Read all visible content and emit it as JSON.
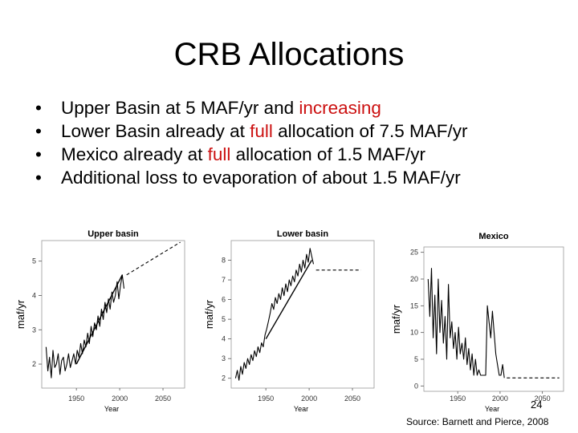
{
  "slide": {
    "title": "CRB Allocations",
    "bullets": [
      {
        "bullet": "•",
        "parts": [
          "Upper Basin at 5 MAF/yr and ",
          "increasing",
          ""
        ]
      },
      {
        "bullet": "•",
        "parts": [
          "Lower Basin already at ",
          "full",
          " allocation of 7.5 MAF/yr"
        ]
      },
      {
        "bullet": "•",
        "parts": [
          "Mexico already at ",
          "full",
          " allocation of 1.5 MAF/yr"
        ]
      },
      {
        "bullet": "•",
        "parts": [
          "Additional loss to evaporation of about 1.5 MAF/yr",
          "",
          ""
        ]
      }
    ],
    "page_number": "24",
    "source": "Source: Barnett and Pierce, 2008"
  },
  "colors": {
    "highlight": "#cc1111",
    "text": "#000000",
    "plot_line": "#000000"
  },
  "chart_data": [
    {
      "type": "line",
      "title": "Upper basin",
      "xlabel": "Year",
      "ylabel": "maf/yr",
      "xlim": [
        1910,
        2075
      ],
      "ylim": [
        1.3,
        5.6
      ],
      "xticks": [
        1950,
        2000,
        2050
      ],
      "yticks": [
        2,
        3,
        4,
        5
      ],
      "grid": false,
      "series": [
        {
          "style": "solid",
          "x": [
            1915,
            1917,
            1919,
            1921,
            1923,
            1925,
            1927,
            1929,
            1931,
            1933,
            1935,
            1937,
            1939,
            1941,
            1943,
            1945,
            1947,
            1949,
            1951,
            1953,
            1955,
            1957,
            1959,
            1961,
            1963,
            1965,
            1967,
            1969,
            1971,
            1973,
            1975,
            1977,
            1979,
            1981,
            1983,
            1985,
            1987,
            1989,
            1991,
            1993,
            1995,
            1997,
            1999,
            2001,
            2003,
            2005
          ],
          "y": [
            2.5,
            1.8,
            2.2,
            1.6,
            2.4,
            1.9,
            2.0,
            2.3,
            1.7,
            2.1,
            2.2,
            1.8,
            2.0,
            2.3,
            1.9,
            2.1,
            2.3,
            2.0,
            2.4,
            2.2,
            2.6,
            2.3,
            2.7,
            2.5,
            2.9,
            2.6,
            3.1,
            2.8,
            3.2,
            3.0,
            3.4,
            3.1,
            3.6,
            3.3,
            3.8,
            3.5,
            3.9,
            3.6,
            4.1,
            3.8,
            4.0,
            4.4,
            3.9,
            4.3,
            4.6,
            4.2
          ]
        },
        {
          "style": "solid",
          "x": [
            1950,
            2003
          ],
          "y": [
            2.0,
            4.6
          ]
        },
        {
          "style": "dashed",
          "x": [
            2008,
            2070
          ],
          "y": [
            4.6,
            5.55
          ]
        }
      ]
    },
    {
      "type": "line",
      "title": "Lower basin",
      "xlabel": "Year",
      "ylabel": "maf/yr",
      "xlim": [
        1910,
        2075
      ],
      "ylim": [
        1.5,
        9.0
      ],
      "xticks": [
        1950,
        2000,
        2050
      ],
      "yticks": [
        2,
        3,
        4,
        5,
        6,
        7,
        8
      ],
      "grid": false,
      "series": [
        {
          "style": "solid",
          "x": [
            1915,
            1917,
            1919,
            1921,
            1923,
            1925,
            1927,
            1929,
            1931,
            1933,
            1935,
            1937,
            1939,
            1941,
            1943,
            1945,
            1947,
            1949,
            1951,
            1953,
            1955,
            1957,
            1959,
            1961,
            1963,
            1965,
            1967,
            1969,
            1971,
            1973,
            1975,
            1977,
            1979,
            1981,
            1983,
            1985,
            1987,
            1989,
            1991,
            1993,
            1995,
            1997,
            1999,
            2001,
            2003,
            2005
          ],
          "y": [
            2.0,
            2.4,
            1.9,
            2.6,
            2.2,
            2.8,
            2.5,
            3.0,
            2.7,
            3.2,
            2.9,
            3.4,
            3.1,
            3.6,
            3.3,
            3.8,
            3.6,
            4.2,
            4.5,
            4.9,
            5.3,
            5.8,
            5.5,
            6.1,
            5.8,
            6.3,
            6.0,
            6.6,
            6.2,
            6.8,
            6.4,
            7.0,
            6.7,
            7.2,
            6.9,
            7.5,
            7.2,
            7.8,
            7.4,
            8.0,
            7.6,
            8.3,
            7.9,
            8.6,
            8.2,
            7.8
          ]
        },
        {
          "style": "solid",
          "x": [
            1950,
            2003
          ],
          "y": [
            4.0,
            8.0
          ]
        },
        {
          "style": "dashed",
          "x": [
            2008,
            2060
          ],
          "y": [
            7.5,
            7.5
          ]
        }
      ]
    },
    {
      "type": "line",
      "title": "Mexico",
      "xlabel": "Year",
      "ylabel": "maf/yr",
      "xlim": [
        1910,
        2075
      ],
      "ylim": [
        -1,
        26
      ],
      "xticks": [
        1950,
        2000,
        2050
      ],
      "yticks": [
        0,
        5,
        10,
        15,
        20,
        25
      ],
      "grid": false,
      "series": [
        {
          "style": "solid",
          "x": [
            1915,
            1917,
            1919,
            1921,
            1923,
            1925,
            1927,
            1929,
            1931,
            1933,
            1935,
            1937,
            1939,
            1941,
            1943,
            1945,
            1947,
            1949,
            1951,
            1953,
            1955,
            1957,
            1959,
            1961,
            1963,
            1965,
            1967,
            1969,
            1971,
            1973,
            1975,
            1977,
            1979,
            1981,
            1983,
            1985,
            1987,
            1989,
            1991,
            1993,
            1995,
            1997,
            1999,
            2001,
            2003,
            2005
          ],
          "y": [
            20,
            13,
            22,
            9,
            17,
            6,
            20,
            10,
            16,
            8,
            13,
            5,
            19,
            9,
            12,
            7,
            10,
            5,
            11,
            6,
            8,
            5,
            9,
            4,
            7,
            3,
            6,
            2,
            5,
            2,
            3,
            2,
            2,
            2,
            2,
            15,
            12,
            9,
            14,
            10,
            6,
            4,
            2,
            2,
            4,
            1.5
          ]
        },
        {
          "style": "dashed",
          "x": [
            2008,
            2070
          ],
          "y": [
            1.5,
            1.5
          ]
        }
      ]
    }
  ]
}
